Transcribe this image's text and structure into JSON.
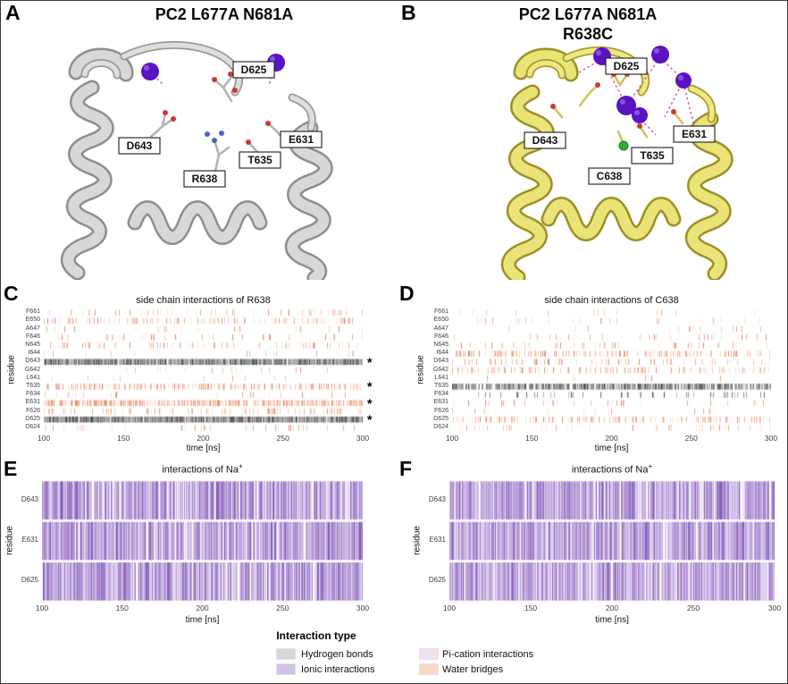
{
  "panels": {
    "a": {
      "label": "A",
      "title": "PC2 L677A N681A",
      "residues": {
        "d625": "D625",
        "d643": "D643",
        "r638": "R638",
        "t635": "T635",
        "e631": "E631"
      }
    },
    "b": {
      "label": "B",
      "title": "PC2 L677A N681A\nR638C",
      "residues": {
        "d625": "D625",
        "d643": "D643",
        "c638": "C638",
        "t635": "T635",
        "e631": "E631"
      }
    },
    "c": {
      "label": "C"
    },
    "d": {
      "label": "D"
    },
    "e": {
      "label": "E",
      "title_pre": "interactions of Na",
      "title_sup": "+"
    },
    "f": {
      "label": "F",
      "title_pre": "interactions of Na",
      "title_sup": "+"
    }
  },
  "legend": {
    "title": "Interaction type",
    "items": [
      {
        "label": "Hydrogen bonds",
        "color": "#d6d6d6",
        "category": "hydrogen_bonds"
      },
      {
        "label": "Ionic interactions",
        "color": "#cfc1e8",
        "category": "ionic_interactions"
      },
      {
        "label": "Pi-cation interactions",
        "color": "#f2e0ee",
        "category": "pi_cation_interactions"
      },
      {
        "label": "Water bridges",
        "color": "#fad9c4",
        "category": "water_bridges"
      }
    ]
  },
  "render": {
    "star_char": "*",
    "palettes": {
      "hydrogen_bonds": [
        "#b9b9b9",
        "#949494",
        "#6f6f6f",
        "#4a4a4a"
      ],
      "ionic_interactions": [
        "#dccfee",
        "#bfa5dd",
        "#a383cb",
        "#8260b4"
      ],
      "pi_cation_interactions": [
        "#f5e6f1",
        "#ecd2e6",
        "#e3bedb",
        "#d9aad0"
      ],
      "water_bridges": [
        "#fbe4d9",
        "#f6c8b4",
        "#efa78e",
        "#e78669"
      ]
    }
  },
  "chart_data": [
    {
      "panel": "C",
      "type": "heatmap",
      "title": "side chain interactions of R638",
      "xlabel": "time [ns]",
      "ylabel": "residue",
      "x_range": [
        100,
        300
      ],
      "x_ticks": [
        100,
        150,
        200,
        250,
        300
      ],
      "legend_position": "bottom",
      "rows": [
        {
          "residue": "F661",
          "category": "water_bridges",
          "occupancy": 0.1,
          "starred": false
        },
        {
          "residue": "E650",
          "category": "water_bridges",
          "occupancy": 0.22,
          "starred": false
        },
        {
          "residue": "A647",
          "category": "water_bridges",
          "occupancy": 0.05,
          "starred": false
        },
        {
          "residue": "F646",
          "category": "water_bridges",
          "occupancy": 0.1,
          "starred": false
        },
        {
          "residue": "N645",
          "category": "water_bridges",
          "occupancy": 0.18,
          "starred": false
        },
        {
          "residue": "I644",
          "category": "water_bridges",
          "occupancy": 0.07,
          "starred": false
        },
        {
          "residue": "D643",
          "category": "hydrogen_bonds",
          "occupancy": 0.97,
          "starred": true
        },
        {
          "residue": "G642",
          "category": "water_bridges",
          "occupancy": 0.05,
          "starred": false
        },
        {
          "residue": "L641",
          "category": "water_bridges",
          "occupancy": 0.02,
          "starred": false
        },
        {
          "residue": "T635",
          "category": "water_bridges",
          "occupancy": 0.45,
          "starred": true
        },
        {
          "residue": "F634",
          "category": "water_bridges",
          "occupancy": 0.06,
          "starred": false
        },
        {
          "residue": "E631",
          "category": "water_bridges",
          "occupancy": 0.7,
          "starred": true
        },
        {
          "residue": "F626",
          "category": "water_bridges",
          "occupancy": 0.25,
          "starred": false
        },
        {
          "residue": "D625",
          "category": "hydrogen_bonds",
          "occupancy": 0.96,
          "starred": true
        },
        {
          "residue": "D624",
          "category": "water_bridges",
          "occupancy": 0.08,
          "starred": false
        }
      ]
    },
    {
      "panel": "D",
      "type": "heatmap",
      "title": "side chain interactions of C638",
      "xlabel": "time [ns]",
      "ylabel": "residue",
      "x_range": [
        100,
        300
      ],
      "x_ticks": [
        100,
        150,
        200,
        250,
        300
      ],
      "legend_position": "bottom",
      "rows": [
        {
          "residue": "F661",
          "category": "water_bridges",
          "occupancy": 0.03,
          "starred": false
        },
        {
          "residue": "E650",
          "category": "water_bridges",
          "occupancy": 0.08,
          "starred": false
        },
        {
          "residue": "A647",
          "category": "water_bridges",
          "occupancy": 0.03,
          "starred": false
        },
        {
          "residue": "F646",
          "category": "water_bridges",
          "occupancy": 0.06,
          "starred": false
        },
        {
          "residue": "N645",
          "category": "water_bridges",
          "occupancy": 0.1,
          "starred": false
        },
        {
          "residue": "I644",
          "category": "water_bridges",
          "occupancy": 0.35,
          "starred": false
        },
        {
          "residue": "D643",
          "category": "water_bridges",
          "occupancy": 0.15,
          "starred": false
        },
        {
          "residue": "G642",
          "category": "water_bridges",
          "occupancy": 0.22,
          "starred": false
        },
        {
          "residue": "L641",
          "category": "water_bridges",
          "occupancy": 0.02,
          "starred": false
        },
        {
          "residue": "T635",
          "category": "hydrogen_bonds",
          "occupancy": 0.8,
          "starred": false
        },
        {
          "residue": "F634",
          "category": "hydrogen_bonds",
          "occupancy": 0.12,
          "starred": false
        },
        {
          "residue": "E631",
          "category": "water_bridges",
          "occupancy": 0.08,
          "starred": false
        },
        {
          "residue": "F626",
          "category": "water_bridges",
          "occupancy": 0.04,
          "starred": false
        },
        {
          "residue": "D625",
          "category": "water_bridges",
          "occupancy": 0.3,
          "starred": false
        },
        {
          "residue": "D624",
          "category": "water_bridges",
          "occupancy": 0.1,
          "starred": false
        }
      ]
    },
    {
      "panel": "E",
      "type": "heatmap",
      "title": "interactions of Na+",
      "xlabel": "time [ns]",
      "ylabel": "residue",
      "x_range": [
        100,
        300
      ],
      "x_ticks": [
        100,
        150,
        200,
        250,
        300
      ],
      "rows": [
        {
          "residue": "D643",
          "category": "ionic_interactions",
          "occupancy": 0.93,
          "starred": false
        },
        {
          "residue": "E631",
          "category": "ionic_interactions",
          "occupancy": 0.95,
          "starred": false
        },
        {
          "residue": "D625",
          "category": "ionic_interactions",
          "occupancy": 0.92,
          "starred": false
        }
      ]
    },
    {
      "panel": "F",
      "type": "heatmap",
      "title": "interactions of Na+",
      "xlabel": "time [ns]",
      "ylabel": "residue",
      "x_range": [
        100,
        300
      ],
      "x_ticks": [
        100,
        150,
        200,
        250,
        300
      ],
      "rows": [
        {
          "residue": "D643",
          "category": "ionic_interactions",
          "occupancy": 0.94,
          "starred": false
        },
        {
          "residue": "E631",
          "category": "ionic_interactions",
          "occupancy": 0.96,
          "starred": false
        },
        {
          "residue": "D625",
          "category": "ionic_interactions",
          "occupancy": 0.93,
          "starred": false
        }
      ]
    }
  ]
}
